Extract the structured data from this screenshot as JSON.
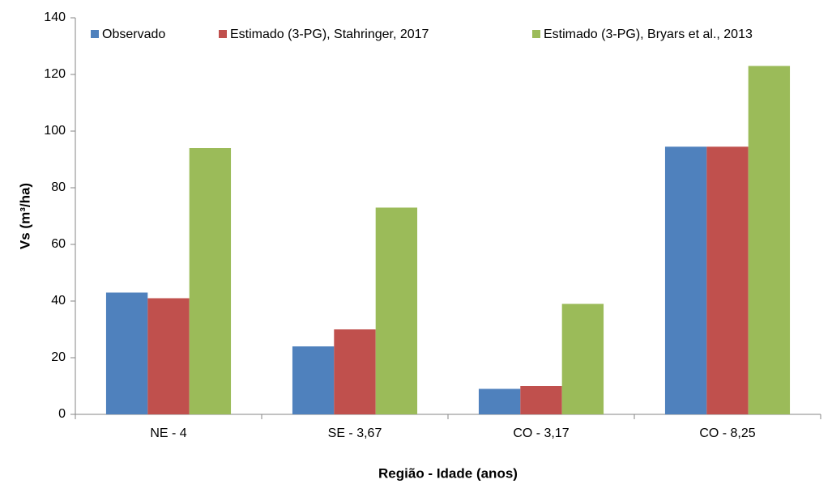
{
  "chart_data": {
    "type": "bar",
    "categories": [
      "NE - 4",
      "SE - 3,67",
      "CO - 3,17",
      "CO - 8,25"
    ],
    "series": [
      {
        "name": "Observado",
        "color": "#4f81bd",
        "values": [
          43,
          24,
          9,
          94.5
        ]
      },
      {
        "name": "Estimado (3-PG), Stahringer, 2017",
        "color": "#c0504d",
        "values": [
          41,
          30,
          10,
          94.5
        ]
      },
      {
        "name": "Estimado (3-PG), Bryars et al., 2013",
        "color": "#9bbb59",
        "values": [
          94,
          73,
          39,
          123
        ]
      }
    ],
    "ylim": [
      0,
      140
    ],
    "yticks": [
      0,
      20,
      40,
      60,
      80,
      100,
      120,
      140
    ],
    "ylabel": "Vs (m³/ha)",
    "xlabel": "Região - Idade (anos)",
    "grid": false,
    "legend": "top"
  }
}
